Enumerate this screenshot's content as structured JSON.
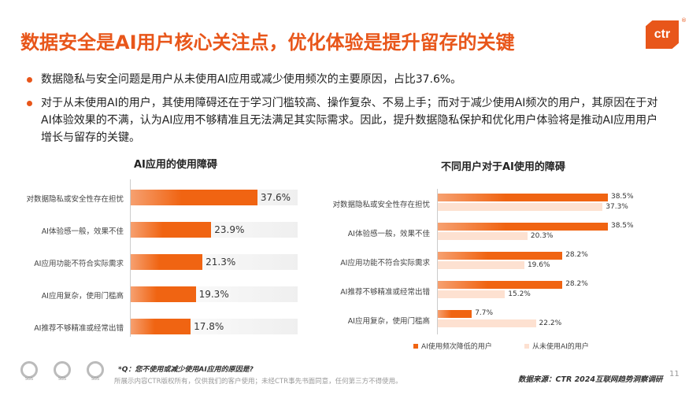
{
  "header": {
    "title": "数据安全是AI用户核心关注点，优化体验是提升留存的关键",
    "logo": "ctr"
  },
  "bullets": [
    "数据隐私与安全问题是用户从未使用AI应用或减少使用频次的主要原因，占比37.6%。",
    "对于从未使用AI的用户，其使用障碍还在于学习门槛较高、操作复杂、不易上手；而对于减少使用AI频次的用户，其原因在于对AI体验效果的不满，认为AI应用不够精准且无法满足其实际需求。因此，提升数据隐私保护和优化用户体验将是推动AI应用用户增长与留存的关键。"
  ],
  "chart_data": [
    {
      "type": "bar",
      "orientation": "horizontal",
      "title": "AI应用的使用障碍",
      "categories": [
        "对数据隐私或安全性存在担忧",
        "AI体验感一般，效果不佳",
        "AI应用功能不符合实际需求",
        "AI应用复杂，使用门槛高",
        "AI推荐不够精准或经常出错"
      ],
      "values": [
        37.6,
        23.9,
        21.3,
        19.3,
        17.8
      ],
      "labels": [
        "37.6%",
        "23.9%",
        "21.3%",
        "19.3%",
        "17.8%"
      ],
      "color": "#f06412"
    },
    {
      "type": "bar",
      "orientation": "horizontal",
      "title": "不同用户对于AI使用的障碍",
      "categories": [
        "对数据隐私或安全性存在担忧",
        "AI体验感一般，效果不佳",
        "AI应用功能不符合实际需求",
        "AI推荐不够精准或经常出错",
        "AI应用复杂，使用门槛高"
      ],
      "series": [
        {
          "name": "AI使用频次降低的用户",
          "values": [
            38.5,
            38.5,
            28.2,
            28.2,
            7.7
          ],
          "labels": [
            "38.5%",
            "38.5%",
            "28.2%",
            "28.2%",
            "7.7%"
          ],
          "color": "#f06412"
        },
        {
          "name": "从未使用AI的用户",
          "values": [
            37.3,
            20.3,
            19.6,
            15.2,
            22.2
          ],
          "labels": [
            "37.3%",
            "20.3%",
            "19.6%",
            "15.2%",
            "22.2%"
          ],
          "color": "#fde1d1"
        }
      ],
      "legend": "bottom"
    }
  ],
  "footer": {
    "note": "*Q：您不使用或减少使用AI应用的原因是?",
    "copyright": "所展示内容CTR版权所有，仅供我们的客户使用；未经CTR事先书面同意，任何第三方不得使用。",
    "source": "数据来源：CTR 2024互联网趋势洞察调研",
    "page": "11",
    "sgs": "SGS"
  }
}
